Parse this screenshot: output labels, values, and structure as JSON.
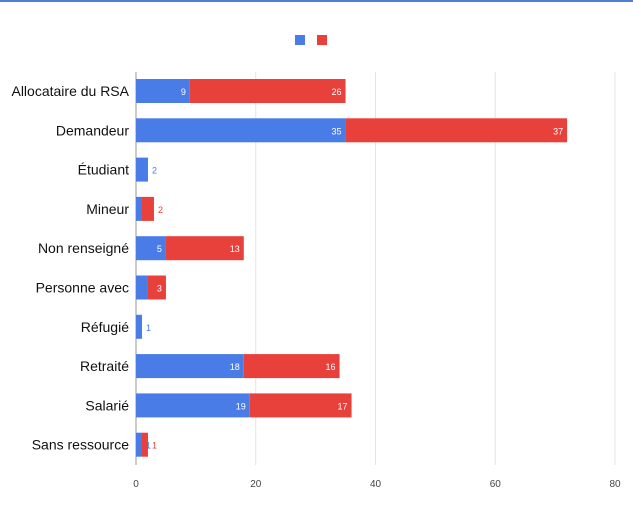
{
  "chart_data": {
    "type": "bar",
    "orientation": "horizontal",
    "stacked": true,
    "categories": [
      "Allocataire du RSA",
      "Demandeur",
      "Étudiant",
      "Mineur",
      "Non renseigné",
      "Personne avec",
      "Réfugié",
      "Retraité",
      "Salarié",
      "Sans ressource"
    ],
    "series": [
      {
        "color": "#4a7ce8",
        "values": [
          9,
          35,
          2,
          1,
          5,
          2,
          1,
          18,
          19,
          1
        ]
      },
      {
        "color": "#e8403b",
        "values": [
          26,
          37,
          null,
          2,
          13,
          3,
          null,
          16,
          17,
          1
        ]
      }
    ],
    "xlim": [
      0,
      80
    ],
    "xticks": [
      0,
      20,
      40,
      60,
      80
    ],
    "legend": "top-center",
    "grid": true,
    "data_labels": true
  }
}
